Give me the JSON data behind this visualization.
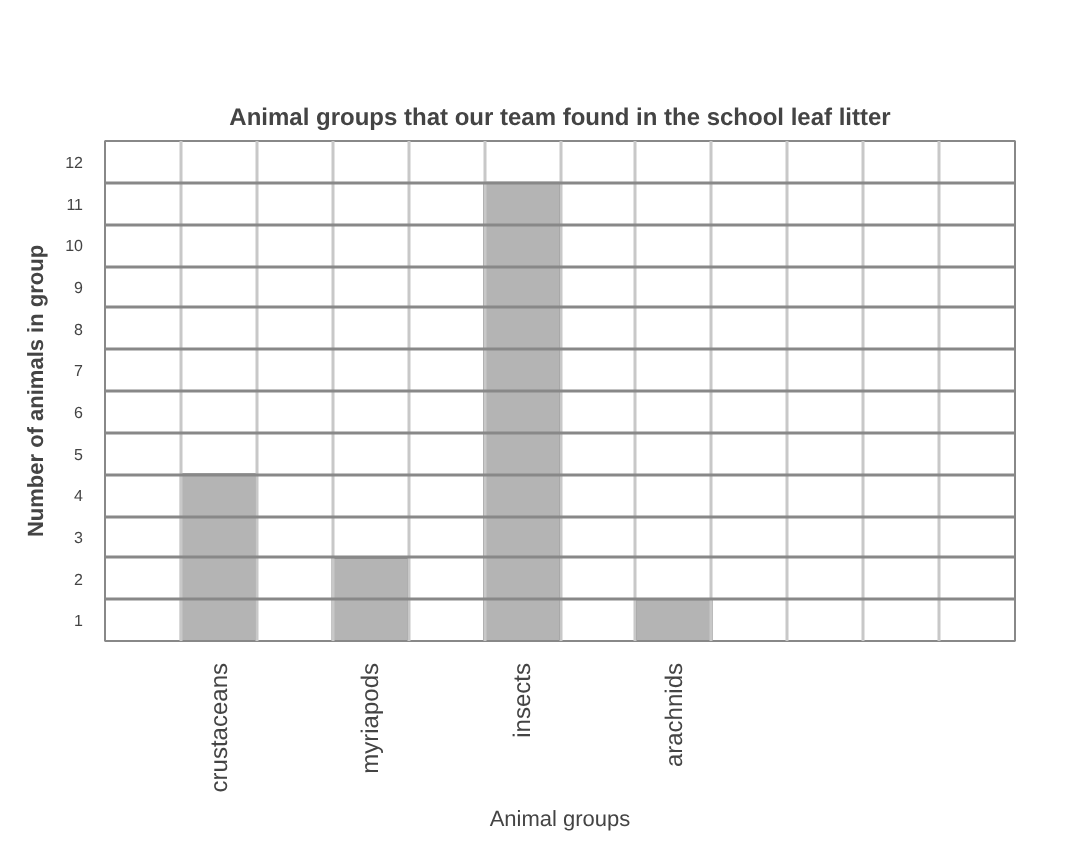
{
  "chart_data": {
    "type": "bar",
    "title": "Animal groups that our team found in the school leaf litter",
    "xlabel": "Animal groups",
    "ylabel": "Number of animals in group",
    "categories": [
      null,
      "crustaceans",
      null,
      "myriapods",
      null,
      "insects",
      null,
      "arachnids",
      null,
      null,
      null,
      null
    ],
    "values": [
      null,
      4,
      null,
      2,
      null,
      11,
      null,
      1,
      null,
      null,
      null,
      null
    ],
    "color": "#b4b4b4",
    "ylim": [
      0,
      12
    ],
    "yticks": [
      {
        "value": 0.5,
        "label": "1"
      },
      {
        "value": 1,
        "label": null
      },
      {
        "value": 1.5,
        "label": "2"
      },
      {
        "value": 2,
        "label": null
      },
      {
        "value": 2.5,
        "label": "3"
      },
      {
        "value": 3,
        "label": null
      },
      {
        "value": 3.5,
        "label": "4"
      },
      {
        "value": 4,
        "label": null
      },
      {
        "value": 4.5,
        "label": "5"
      },
      {
        "value": 5,
        "label": null
      },
      {
        "value": 5.5,
        "label": "6"
      },
      {
        "value": 6,
        "label": null
      },
      {
        "value": 6.5,
        "label": "7"
      },
      {
        "value": 7,
        "label": null
      },
      {
        "value": 7.5,
        "label": "8"
      },
      {
        "value": 8,
        "label": null
      },
      {
        "value": 8.5,
        "label": "9"
      },
      {
        "value": 9,
        "label": null
      },
      {
        "value": 9.5,
        "label": "10"
      },
      {
        "value": 10,
        "label": null
      },
      {
        "value": 10.5,
        "label": "11"
      },
      {
        "value": 11,
        "label": null
      },
      {
        "value": 11.5,
        "label": "12"
      }
    ],
    "grid": true
  }
}
